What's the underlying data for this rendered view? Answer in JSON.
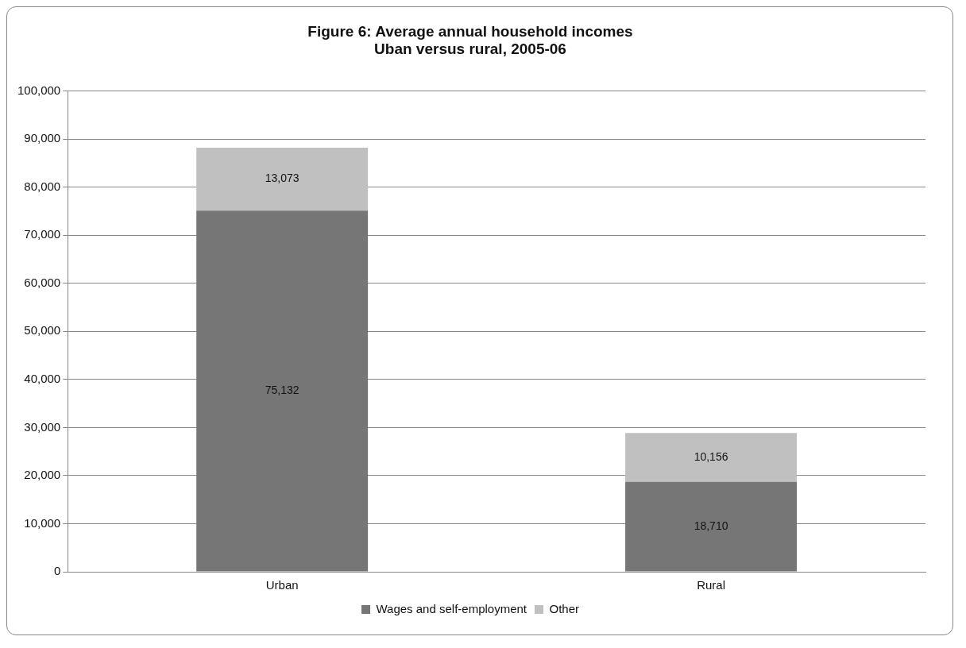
{
  "chart_data": {
    "type": "bar",
    "title": "Figure 6: Average annual household incomes\nUban versus rural, 2005-06",
    "categories": [
      "Urban",
      "Rural"
    ],
    "series": [
      {
        "name": "Wages and self-employment",
        "color": "#767676",
        "values": [
          75132,
          18710
        ],
        "value_labels": [
          "75,132",
          "18,710"
        ]
      },
      {
        "name": "Other",
        "color": "#c0c0c0",
        "values": [
          13073,
          10156
        ],
        "value_labels": [
          "13,073",
          "10,156"
        ]
      }
    ],
    "stacked": true,
    "ylim": [
      0,
      100000
    ],
    "yticks": [
      {
        "value": 0,
        "label": "0"
      },
      {
        "value": 10000,
        "label": "10,000"
      },
      {
        "value": 20000,
        "label": "20,000"
      },
      {
        "value": 30000,
        "label": "30,000"
      },
      {
        "value": 40000,
        "label": "40,000"
      },
      {
        "value": 50000,
        "label": "50,000"
      },
      {
        "value": 60000,
        "label": "60,000"
      },
      {
        "value": 70000,
        "label": "70,000"
      },
      {
        "value": 80000,
        "label": "80,000"
      },
      {
        "value": 90000,
        "label": "90,000"
      },
      {
        "value": 100000,
        "label": "100,000"
      }
    ],
    "grid": "y",
    "legend": "bottom"
  }
}
